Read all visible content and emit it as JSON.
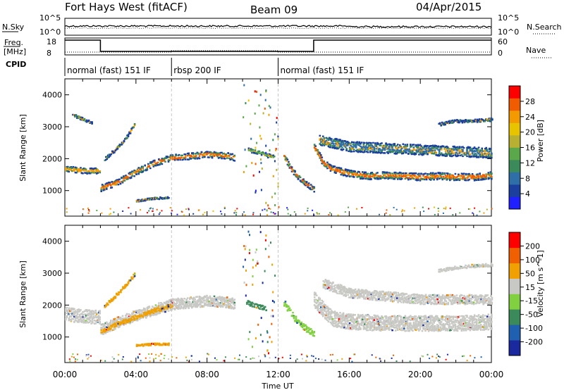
{
  "header": {
    "station": "Fort Hays West (fitACF)",
    "beam": "Beam 09",
    "date": "04/Apr/2015"
  },
  "noise_panel": {
    "left_label": "N.Sky",
    "right_label": "N.Search",
    "left_ticks": [
      "10^5",
      "10^0"
    ],
    "right_ticks": [
      "10^5",
      "10^0"
    ]
  },
  "freq_panel": {
    "left_label_1": "Freq.",
    "left_label_2": "[MHz]",
    "right_label": "Nave",
    "left_ticks": [
      "18",
      "8"
    ],
    "right_ticks": [
      "60",
      "0"
    ]
  },
  "cpid_panel": {
    "label": "CPID",
    "segments": [
      {
        "name": "normal (fast) 151 IF",
        "start_hour": 0,
        "end_hour": 6
      },
      {
        "name": "rbsp 200 IF",
        "start_hour": 6,
        "end_hour": 12
      },
      {
        "name": "normal (fast) 151 IF",
        "start_hour": 12,
        "end_hour": 24
      }
    ]
  },
  "chart_data": [
    {
      "type": "heatmap",
      "name": "power",
      "ylabel": "Slant Range [km]",
      "yticks": [
        "4000",
        "3000",
        "2000",
        "1000"
      ],
      "ylim": [
        200,
        4500
      ],
      "xlim": [
        0,
        24
      ],
      "colorbar": {
        "label": "Power [dB]",
        "ticks": [
          "28",
          "24",
          "20",
          "16",
          "12",
          "8",
          "4"
        ],
        "colors": [
          "#2020ff",
          "#1a3f9e",
          "#2f6fa8",
          "#3a8a5a",
          "#5aa84a",
          "#b8b030",
          "#e8c400",
          "#f29a00",
          "#f25c00",
          "#ff0000"
        ]
      },
      "bands": [
        {
          "t": [
            0,
            0.5,
            1,
            1.5,
            1.95
          ],
          "r": [
            1700,
            1680,
            1650,
            1640,
            1650
          ],
          "w": 180,
          "core": "#f29a00"
        },
        {
          "t": [
            2,
            3,
            4,
            5,
            6,
            7,
            8,
            9,
            9.5
          ],
          "r": [
            1100,
            1300,
            1620,
            1880,
            2050,
            2100,
            2160,
            2120,
            2060
          ],
          "w": 200,
          "core": "#f25c00"
        },
        {
          "t": [
            10.3,
            11,
            11.5,
            11.8
          ],
          "r": [
            2300,
            2200,
            2100,
            2050
          ],
          "w": 130,
          "core": "#5aa84a"
        },
        {
          "t": [
            12.3,
            12.7,
            13,
            13.5,
            14
          ],
          "r": [
            2100,
            1700,
            1500,
            1250,
            1050
          ],
          "w": 160,
          "core": "#f25c00"
        },
        {
          "t": [
            14,
            14.5,
            15,
            16,
            17,
            18,
            19,
            20,
            21,
            22,
            23,
            24
          ],
          "r": [
            2400,
            1900,
            1700,
            1550,
            1480,
            1500,
            1480,
            1450,
            1480,
            1450,
            1450,
            1500
          ],
          "w": 220,
          "core": "#f25c00"
        },
        {
          "t": [
            14.3,
            16,
            18,
            20,
            22,
            24
          ],
          "r": [
            2600,
            2400,
            2350,
            2300,
            2250,
            2200
          ],
          "w": 320,
          "core": "#2f6fa8"
        },
        {
          "t": [
            0.4,
            1,
            1.5
          ],
          "r": [
            3400,
            3250,
            3150
          ],
          "w": 90,
          "core": "#1a3f9e"
        },
        {
          "t": [
            2.2,
            2.8,
            3.4,
            3.9
          ],
          "r": [
            2000,
            2300,
            2650,
            3100
          ],
          "w": 100,
          "core": "#1a3f9e"
        },
        {
          "t": [
            4,
            5,
            5.8
          ],
          "r": [
            700,
            780,
            800
          ],
          "w": 60,
          "core": "#1a3f9e"
        },
        {
          "t": [
            21,
            22,
            23,
            24
          ],
          "r": [
            3100,
            3200,
            3200,
            3250
          ],
          "w": 100,
          "core": "#1a3f9e"
        }
      ]
    },
    {
      "type": "heatmap",
      "name": "velocity",
      "ylabel": "Slant Range [km]",
      "yticks": [
        "4000",
        "3000",
        "2000",
        "1000"
      ],
      "ylim": [
        200,
        4500
      ],
      "xlim": [
        0,
        24
      ],
      "xticks": [
        "00:00",
        "04:00",
        "08:00",
        "12:00",
        "16:00",
        "20:00",
        "00:00"
      ],
      "xlabel": "Time UT",
      "colorbar": {
        "label": "Velocity [m s^-1]",
        "ticks": [
          "200",
          "100",
          "50",
          "15",
          "-15",
          "-50",
          "-100",
          "-200"
        ],
        "colors": [
          "#1a2a9e",
          "#2060b0",
          "#3a8a5a",
          "#80d040",
          "#c8c8c4",
          "#f0a000",
          "#f06000",
          "#ff0000"
        ]
      },
      "bands": [
        {
          "t": [
            0,
            0.5,
            1,
            1.5,
            1.95
          ],
          "r": [
            1750,
            1700,
            1680,
            1650,
            1650
          ],
          "w": 420,
          "core": "#c8c8c4"
        },
        {
          "t": [
            2,
            3,
            4,
            5,
            6,
            7,
            8,
            9,
            9.5
          ],
          "r": [
            1250,
            1500,
            1700,
            1880,
            2050,
            2100,
            2160,
            2120,
            2060
          ],
          "w": 340,
          "core": "#c8c8c4"
        },
        {
          "t": [
            2,
            3,
            4,
            5,
            6
          ],
          "r": [
            1200,
            1450,
            1650,
            1850,
            2000
          ],
          "w": 130,
          "core": "#f0a000"
        },
        {
          "t": [
            12.3,
            12.7,
            13,
            13.5,
            14
          ],
          "r": [
            2100,
            1750,
            1550,
            1300,
            1100
          ],
          "w": 200,
          "core": "#80d040"
        },
        {
          "t": [
            14,
            15,
            16,
            18,
            20,
            22,
            24
          ],
          "r": [
            2200,
            1600,
            1500,
            1450,
            1450,
            1450,
            1500
          ],
          "w": 480,
          "core": "#c8c8c4"
        },
        {
          "t": [
            14.5,
            16,
            18,
            20,
            22,
            24
          ],
          "r": [
            2700,
            2400,
            2300,
            2200,
            2200,
            2200
          ],
          "w": 300,
          "core": "#c8c8c4"
        },
        {
          "t": [
            2.2,
            2.8,
            3.4,
            3.9
          ],
          "r": [
            2000,
            2300,
            2650,
            3000
          ],
          "w": 110,
          "core": "#f0a000"
        },
        {
          "t": [
            4,
            5,
            5.8
          ],
          "r": [
            760,
            800,
            800
          ],
          "w": 60,
          "core": "#f0a000"
        },
        {
          "t": [
            21,
            22,
            23,
            24
          ],
          "r": [
            3100,
            3200,
            3250,
            3280
          ],
          "w": 100,
          "core": "#c8c8c4"
        },
        {
          "t": [
            10.2,
            10.8,
            11.3
          ],
          "r": [
            2100,
            2000,
            1900
          ],
          "w": 140,
          "core": "#3a8a5a"
        }
      ]
    }
  ]
}
